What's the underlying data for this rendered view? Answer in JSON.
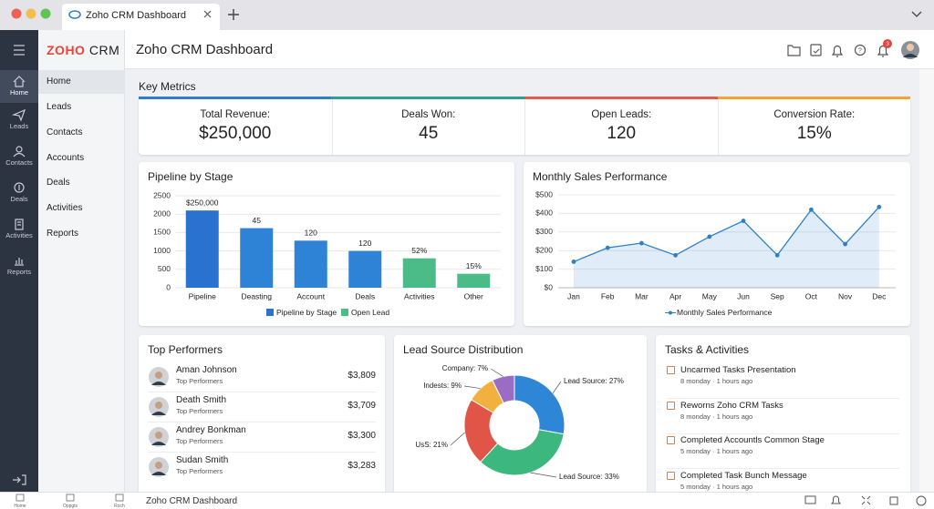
{
  "browser": {
    "tab_title": "Zoho CRM Dashboard"
  },
  "sidebar": {
    "items": [
      "Home",
      "Leads",
      "Contacts",
      "Deals",
      "Activities",
      "Reports"
    ]
  },
  "nav": {
    "logo_brand": "ZOHO",
    "logo_product": "CRM",
    "items": [
      "Home",
      "Leads",
      "Contacts",
      "Accounts",
      "Deals",
      "Activities",
      "Reports"
    ]
  },
  "header": {
    "title": "Zoho CRM Dashboard",
    "notification_count": 3
  },
  "key_metrics": {
    "title": "Key Metrics",
    "items": [
      {
        "label": "Total Revenue:",
        "value": "$250,000"
      },
      {
        "label": "Deals Won:",
        "value": "45"
      },
      {
        "label": "Open Leads:",
        "value": "120"
      },
      {
        "label": "Conversion Rate:",
        "value": "15%"
      }
    ]
  },
  "chart_data": [
    {
      "type": "bar",
      "title": "Pipeline by Stage",
      "categories": [
        "Pipeline",
        "Deasting",
        "Account",
        "Deals",
        "Activities",
        "Other"
      ],
      "values": [
        2100,
        1620,
        1280,
        1000,
        800,
        380
      ],
      "colors": [
        "#2a72cf",
        "#2f83d6",
        "#2f83d6",
        "#2f83d6",
        "#4bbb88",
        "#4bbb88"
      ],
      "annotations": [
        "$250,000",
        "45",
        "120",
        "120",
        "52%",
        "15%"
      ],
      "legend": [
        {
          "name": "Pipeline by Stage",
          "color": "#2a72cf"
        },
        {
          "name": "Open Lead",
          "color": "#4bbb88"
        }
      ],
      "ylim": [
        0,
        2500
      ],
      "yticks": [
        0,
        500,
        1000,
        1500,
        2000,
        2500
      ],
      "grid": true
    },
    {
      "type": "line",
      "title": "Monthly Sales Performance",
      "categories": [
        "Jan",
        "Feb",
        "Mar",
        "Apr",
        "May",
        "Jun",
        "Sep",
        "Oct",
        "Nov",
        "Dec"
      ],
      "series": [
        {
          "name": "Monthly Sales Performance",
          "color": "#2f7fc6",
          "values": [
            140,
            215,
            240,
            175,
            275,
            360,
            175,
            420,
            235,
            435
          ]
        }
      ],
      "ylim": [
        0,
        500
      ],
      "yticks": [
        {
          "value": 0,
          "label": "$0"
        },
        {
          "value": 100,
          "label": "$100"
        },
        {
          "value": 200,
          "label": "$200"
        },
        {
          "value": 300,
          "label": "$300"
        },
        {
          "value": 400,
          "label": "$400"
        },
        {
          "value": 500,
          "label": "$500"
        }
      ],
      "grid": true
    },
    {
      "type": "pie",
      "title": "Lead Source Distribution",
      "donut": true,
      "values": [
        27,
        33,
        21,
        9,
        7
      ],
      "value_labels": [
        "Lead Source: 27%",
        "Lead Source: 33%",
        "UsS: 21%",
        "Indests: 9%",
        "Company: 7%"
      ],
      "colors": [
        "#2e86d6",
        "#3cb77d",
        "#e05548",
        "#f2b13f",
        "#9b6cc4"
      ]
    }
  ],
  "top_performers": {
    "title": "Top Performers",
    "rows": [
      {
        "name": "Aman Johnson",
        "role": "Top Performers",
        "amount": "$3,809"
      },
      {
        "name": "Death Smith",
        "role": "Top Performers",
        "amount": "$3,709"
      },
      {
        "name": "Andrey Bonkman",
        "role": "Top Performers",
        "amount": "$3,300"
      },
      {
        "name": "Sudan Smith",
        "role": "Top Performers",
        "amount": "$3,283"
      }
    ]
  },
  "tasks": {
    "title": "Tasks & Activities",
    "items": [
      {
        "title": "Uncarmed Tasks Presentation",
        "time": "8 monday · 1 hours ago"
      },
      {
        "title": "Reworns Zoho CRM Tasks",
        "time": "8 monday · 1 hours ago"
      },
      {
        "title": "Completed Accountls Common Stage",
        "time": "5 monday · 1 hours ago"
      },
      {
        "title": "Completed Task Bunch Message",
        "time": "5 monday · 1 hours ago"
      }
    ]
  },
  "footer": {
    "nav": [
      "Home",
      "Oppgts",
      "Roch"
    ],
    "title": "Zoho CRM Dashboard"
  }
}
